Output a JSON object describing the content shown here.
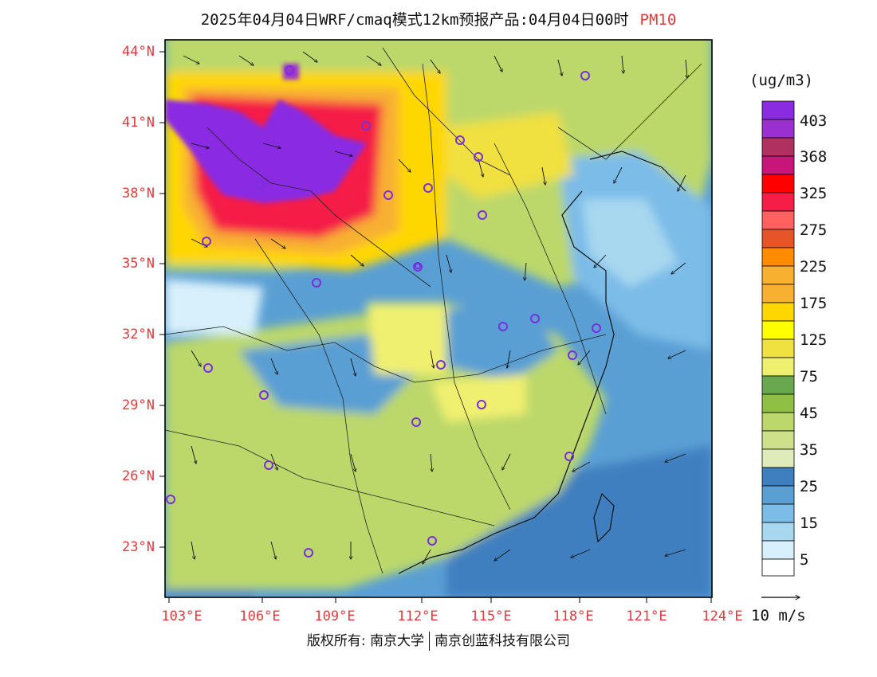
{
  "title": "2025年04月04日WRF/cmaq模式12km预报产品:04月04日00时",
  "variable": "PM10",
  "lat_labels": [
    "44°N",
    "41°N",
    "38°N",
    "35°N",
    "32°N",
    "29°N",
    "26°N",
    "23°N"
  ],
  "lon_labels": [
    "103°E",
    "106°E",
    "109°E",
    "112°E",
    "115°E",
    "118°E",
    "121°E",
    "124°E"
  ],
  "legend": {
    "unit": "(ug/m3)",
    "labels": [
      "403",
      "368",
      "325",
      "275",
      "225",
      "175",
      "125",
      "75",
      "45",
      "35",
      "25",
      "15",
      "5"
    ],
    "colors": [
      "#8a2be2",
      "#9b30d0",
      "#b03060",
      "#c8157a",
      "#ff0000",
      "#f51e46",
      "#ff6060",
      "#e8542a",
      "#ff8c00",
      "#f8b030",
      "#ffd700",
      "#ffff00",
      "#f0e040",
      "#f0f070",
      "#6aa84f",
      "#8fbf45",
      "#bcd86a",
      "#cfe08a",
      "#e0ebbb",
      "#3f7fbf",
      "#5a9fd4",
      "#7cbce8",
      "#a8d8f0",
      "#d8f0fb",
      "#ffffff"
    ]
  },
  "vector_scale": "10 m/s",
  "cities": [
    "c01",
    "c02",
    "c03",
    "c04",
    "c05",
    "c06",
    "c07",
    "c08",
    "c09",
    "c10",
    "c11",
    "c12",
    "c13",
    "c14",
    "c15",
    "c16",
    "c17",
    "c18",
    "c19",
    "c20",
    "c21",
    "c22",
    "c23",
    "c24",
    "c25",
    "c26",
    "c27"
  ],
  "copyright": {
    "part1": "版权所有: 南京大学",
    "part2": "南京创蓝科技有限公司"
  },
  "colors": {
    "label_red": "#e23b3b",
    "city_marker": "#7a2ee0"
  }
}
